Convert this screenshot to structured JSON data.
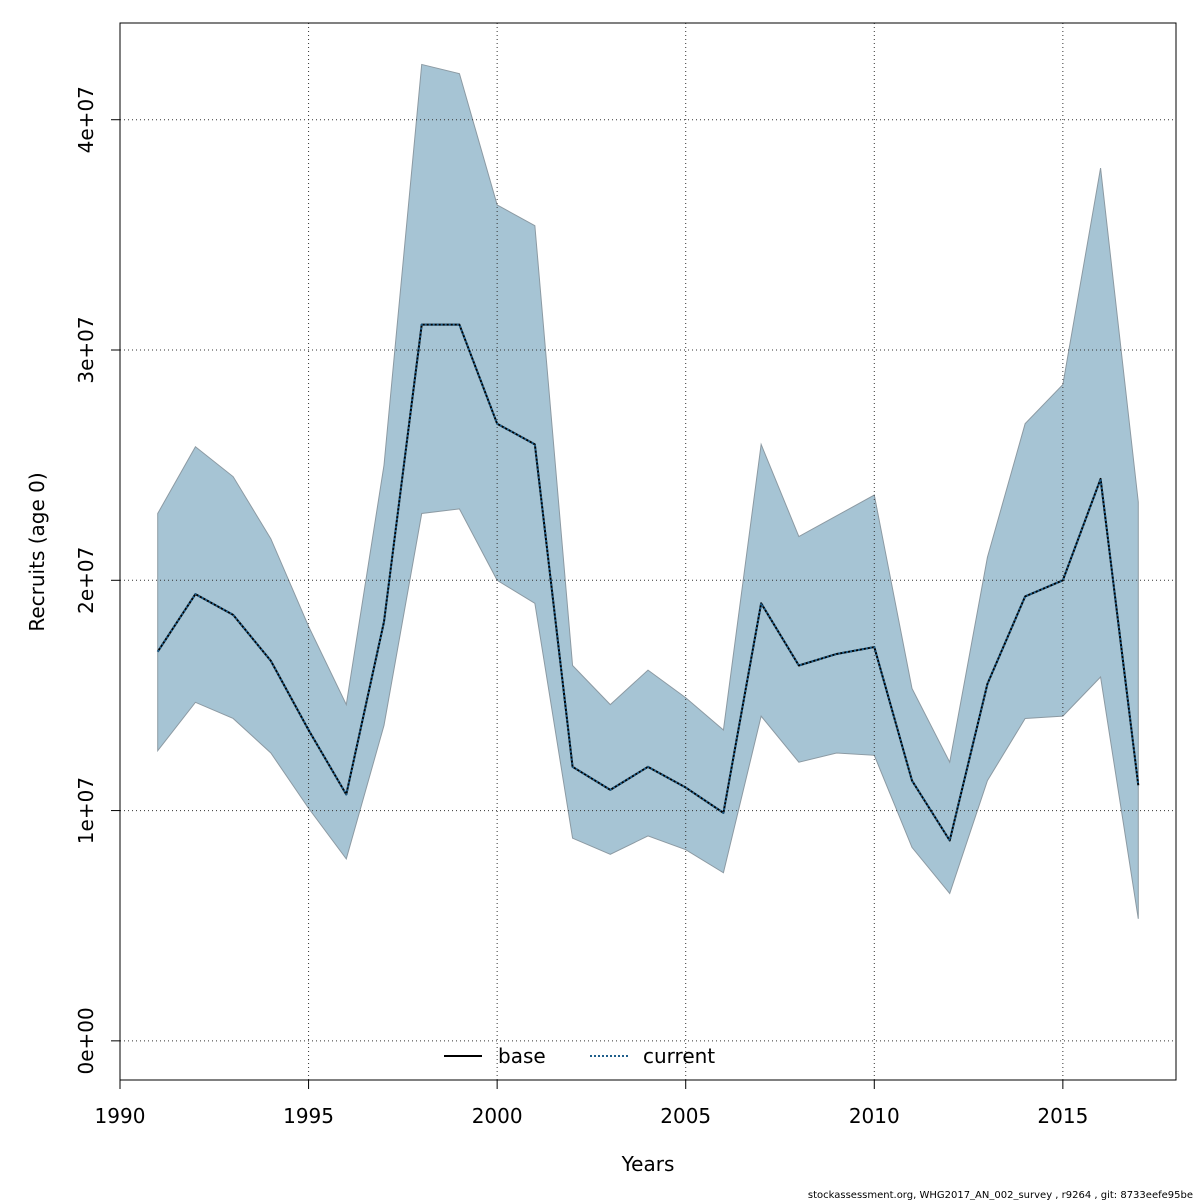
{
  "chart_data": {
    "type": "line",
    "xlabel": "Years",
    "ylabel": "Recruits (age 0)",
    "xlim": [
      1990,
      2018
    ],
    "ylim": [
      -1700000,
      44200000
    ],
    "x_ticks": [
      1990,
      1995,
      2000,
      2005,
      2010,
      2015
    ],
    "y_ticks": [
      0,
      10000000,
      20000000,
      30000000,
      40000000
    ],
    "y_tick_labels": [
      "0e+00",
      "1e+07",
      "2e+07",
      "3e+07",
      "4e+07"
    ],
    "grid": true,
    "legend_position": "bottom-center",
    "x": [
      1991,
      1992,
      1993,
      1994,
      1995,
      1996,
      1997,
      1998,
      1999,
      2000,
      2001,
      2002,
      2003,
      2004,
      2005,
      2006,
      2007,
      2008,
      2009,
      2010,
      2011,
      2012,
      2013,
      2014,
      2015,
      2016,
      2017
    ],
    "series": [
      {
        "name": "base",
        "style": "solid",
        "color": "#000000",
        "values": [
          16900000,
          19400000,
          18500000,
          16500000,
          13500000,
          10700000,
          18200000,
          31100000,
          31100000,
          26800000,
          25900000,
          11900000,
          10900000,
          11900000,
          11000000,
          9900000,
          19000000,
          16300000,
          16800000,
          17100000,
          11300000,
          8700000,
          15500000,
          19300000,
          20000000,
          24400000,
          11100000
        ]
      },
      {
        "name": "current",
        "style": "dotted",
        "color": "#1f5f8b",
        "values": [
          16900000,
          19400000,
          18500000,
          16500000,
          13500000,
          10700000,
          18200000,
          31100000,
          31100000,
          26800000,
          25900000,
          11900000,
          10900000,
          11900000,
          11000000,
          9900000,
          19000000,
          16300000,
          16800000,
          17100000,
          11300000,
          8700000,
          15500000,
          19300000,
          20000000,
          24400000,
          11100000
        ]
      }
    ],
    "confidence_band": {
      "color": "#a6c4d4",
      "upper": [
        22900000,
        25800000,
        24500000,
        21800000,
        18000000,
        14600000,
        25000000,
        42400000,
        42000000,
        36300000,
        35400000,
        16300000,
        14600000,
        16100000,
        14900000,
        13500000,
        25900000,
        21900000,
        22800000,
        23700000,
        15300000,
        12100000,
        21000000,
        26800000,
        28500000,
        37900000,
        23400000
      ],
      "lower": [
        12600000,
        14700000,
        14000000,
        12500000,
        10100000,
        7900000,
        13700000,
        22900000,
        23100000,
        20000000,
        19000000,
        8800000,
        8100000,
        8900000,
        8300000,
        7300000,
        14100000,
        12100000,
        12500000,
        12400000,
        8400000,
        6400000,
        11300000,
        14000000,
        14100000,
        15800000,
        5300000
      ]
    }
  },
  "footer": {
    "text": "stockassessment.org, WHG2017_AN_002_survey , r9264 , git: 8733eefe95be"
  }
}
